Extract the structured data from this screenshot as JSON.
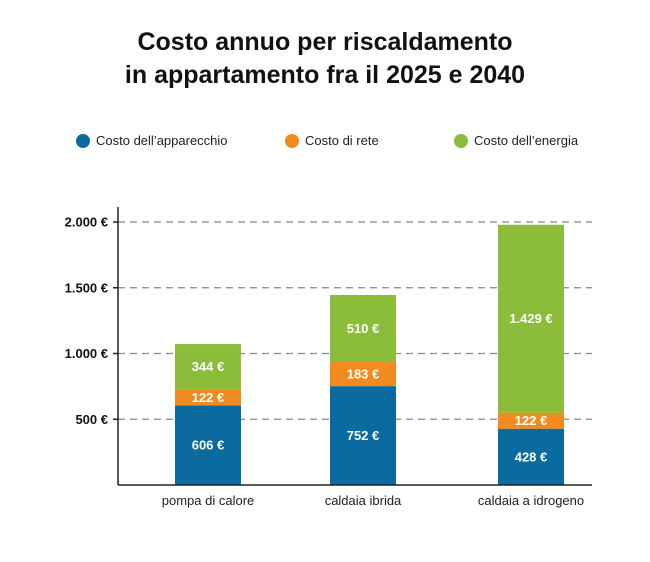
{
  "chart_data": {
    "type": "bar",
    "stacked": true,
    "title_line1": "Costo annuo per riscaldamento",
    "title_line2": "in appartamento fra il 2025 e 2040",
    "categories": [
      "pompa di calore",
      "caldaia ibrida",
      "caldaia a idrogeno"
    ],
    "series": [
      {
        "name": "Costo dell’apparecchio",
        "color": "#0b6b9e",
        "values": [
          606,
          752,
          428
        ],
        "labels": [
          "606 €",
          "752 €",
          "428 €"
        ]
      },
      {
        "name": "Costo di rete",
        "color": "#f18b1f",
        "values": [
          122,
          183,
          122
        ],
        "labels": [
          "122 €",
          "183 €",
          "122 €"
        ]
      },
      {
        "name": "Costo dell’energia",
        "color": "#8bbd3b",
        "values": [
          344,
          510,
          1429
        ],
        "labels": [
          "344 €",
          "510 €",
          "1.429 €"
        ]
      }
    ],
    "yticks": [
      500,
      1000,
      1500,
      2000
    ],
    "ytick_labels": [
      "500 €",
      "1.000 €",
      "1.500 €",
      "2.000 €"
    ],
    "ylim": [
      0,
      2000
    ],
    "grid": true,
    "legend_position": "top"
  }
}
